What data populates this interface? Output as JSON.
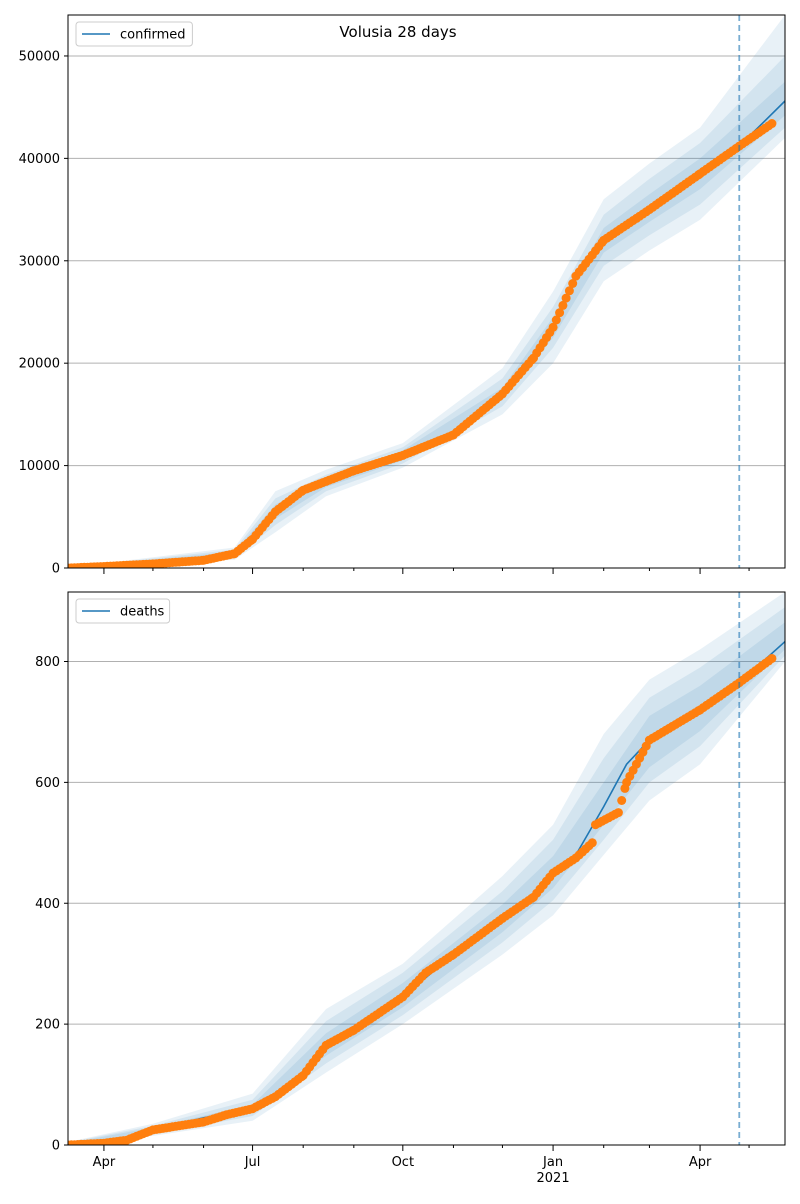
{
  "figure_title": "Volusia 28 days",
  "colors": {
    "model": "#1f77b4",
    "observed": "#ff7f0e",
    "band": "#1f77b4",
    "grid": "#b0b0b0",
    "cutoff": "#1f77b4"
  },
  "x_ticks": [
    {
      "date": "2020-04-01",
      "label": "Apr",
      "sub": ""
    },
    {
      "date": "2020-07-01",
      "label": "Jul",
      "sub": ""
    },
    {
      "date": "2020-10-01",
      "label": "Oct",
      "sub": ""
    },
    {
      "date": "2021-01-01",
      "label": "Jan",
      "sub": "2021"
    },
    {
      "date": "2021-04-01",
      "label": "Apr",
      "sub": ""
    }
  ],
  "chart_data": [
    {
      "type": "line",
      "title": "Volusia 28 days",
      "legend": [
        "confirmed"
      ],
      "legend_position": "upper-left",
      "grid": "horizontal",
      "xlim": [
        "2020-03-10",
        "2021-05-23"
      ],
      "ylim": [
        0,
        54000
      ],
      "yticks": [
        0,
        10000,
        20000,
        30000,
        40000,
        50000
      ],
      "ytick_labels": [
        "0",
        "10000",
        "20000",
        "30000",
        "40000",
        "50000"
      ],
      "forecast_start": "2021-04-25",
      "model_line": {
        "name": "confirmed",
        "points": [
          [
            "2020-03-10",
            0
          ],
          [
            "2020-04-01",
            150
          ],
          [
            "2020-05-01",
            400
          ],
          [
            "2020-06-01",
            750
          ],
          [
            "2020-06-20",
            1400
          ],
          [
            "2020-07-01",
            2800
          ],
          [
            "2020-07-15",
            5500
          ],
          [
            "2020-08-01",
            7600
          ],
          [
            "2020-09-01",
            9500
          ],
          [
            "2020-10-01",
            11000
          ],
          [
            "2020-11-01",
            13000
          ],
          [
            "2020-12-01",
            17000
          ],
          [
            "2020-12-20",
            20500
          ],
          [
            "2021-01-01",
            23500
          ],
          [
            "2021-01-15",
            28500
          ],
          [
            "2021-02-01",
            32000
          ],
          [
            "2021-03-01",
            35000
          ],
          [
            "2021-04-01",
            38500
          ],
          [
            "2021-04-25",
            41200
          ],
          [
            "2021-05-23",
            45600
          ]
        ]
      },
      "bands": [
        {
          "level": "outer",
          "lower": [
            [
              "2020-03-10",
              0
            ],
            [
              "2020-06-20",
              800
            ],
            [
              "2020-07-15",
              3500
            ],
            [
              "2020-08-15",
              7000
            ],
            [
              "2020-10-01",
              9800
            ],
            [
              "2020-12-01",
              15000
            ],
            [
              "2021-01-01",
              20000
            ],
            [
              "2021-02-01",
              28000
            ],
            [
              "2021-03-01",
              31000
            ],
            [
              "2021-04-01",
              34000
            ],
            [
              "2021-05-23",
              42000
            ]
          ],
          "upper": [
            [
              "2020-03-10",
              50
            ],
            [
              "2020-06-20",
              2000
            ],
            [
              "2020-07-15",
              7500
            ],
            [
              "2020-08-15",
              9600
            ],
            [
              "2020-10-01",
              12200
            ],
            [
              "2020-12-01",
              19500
            ],
            [
              "2021-01-01",
              27000
            ],
            [
              "2021-02-01",
              36000
            ],
            [
              "2021-03-01",
              39500
            ],
            [
              "2021-04-01",
              43000
            ],
            [
              "2021-05-23",
              54000
            ]
          ]
        },
        {
          "level": "middle",
          "lower": [
            [
              "2020-03-10",
              0
            ],
            [
              "2020-06-20",
              1000
            ],
            [
              "2020-07-15",
              4200
            ],
            [
              "2020-08-15",
              7500
            ],
            [
              "2020-10-01",
              10200
            ],
            [
              "2020-12-01",
              15800
            ],
            [
              "2021-01-01",
              21500
            ],
            [
              "2021-02-01",
              29500
            ],
            [
              "2021-03-01",
              32500
            ],
            [
              "2021-04-01",
              35500
            ],
            [
              "2021-05-23",
              43000
            ]
          ],
          "upper": [
            [
              "2020-03-10",
              30
            ],
            [
              "2020-06-20",
              1800
            ],
            [
              "2020-07-15",
              6800
            ],
            [
              "2020-08-15",
              9100
            ],
            [
              "2020-10-01",
              11800
            ],
            [
              "2020-12-01",
              18500
            ],
            [
              "2021-01-01",
              25500
            ],
            [
              "2021-02-01",
              34500
            ],
            [
              "2021-03-01",
              38000
            ],
            [
              "2021-04-01",
              41500
            ],
            [
              "2021-05-23",
              50000
            ]
          ]
        },
        {
          "level": "inner",
          "lower": [
            [
              "2020-03-10",
              0
            ],
            [
              "2020-06-20",
              1200
            ],
            [
              "2020-07-15",
              4800
            ],
            [
              "2020-08-15",
              7900
            ],
            [
              "2020-10-01",
              10500
            ],
            [
              "2020-12-01",
              16400
            ],
            [
              "2021-01-01",
              22500
            ],
            [
              "2021-02-01",
              30800
            ],
            [
              "2021-03-01",
              33800
            ],
            [
              "2021-04-01",
              37000
            ],
            [
              "2021-05-23",
              44200
            ]
          ],
          "upper": [
            [
              "2020-03-10",
              20
            ],
            [
              "2020-06-20",
              1600
            ],
            [
              "2020-07-15",
              6200
            ],
            [
              "2020-08-15",
              8700
            ],
            [
              "2020-10-01",
              11500
            ],
            [
              "2020-12-01",
              17600
            ],
            [
              "2021-01-01",
              24500
            ],
            [
              "2021-02-01",
              33200
            ],
            [
              "2021-03-01",
              36500
            ],
            [
              "2021-04-01",
              40000
            ],
            [
              "2021-05-23",
              47500
            ]
          ]
        }
      ],
      "observed": {
        "points": [
          [
            "2020-03-10",
            0
          ],
          [
            "2020-04-01",
            150
          ],
          [
            "2020-05-01",
            400
          ],
          [
            "2020-06-01",
            750
          ],
          [
            "2020-06-20",
            1400
          ],
          [
            "2020-07-01",
            2800
          ],
          [
            "2020-07-15",
            5500
          ],
          [
            "2020-08-01",
            7600
          ],
          [
            "2020-09-01",
            9500
          ],
          [
            "2020-10-01",
            11000
          ],
          [
            "2020-11-01",
            13000
          ],
          [
            "2020-12-01",
            17000
          ],
          [
            "2020-12-20",
            20500
          ],
          [
            "2021-01-01",
            23500
          ],
          [
            "2021-01-15",
            28500
          ],
          [
            "2021-02-01",
            32000
          ],
          [
            "2021-03-01",
            35000
          ],
          [
            "2021-04-01",
            38500
          ],
          [
            "2021-04-25",
            41200
          ],
          [
            "2021-05-15",
            43400
          ]
        ]
      }
    },
    {
      "type": "line",
      "title": "",
      "legend": [
        "deaths"
      ],
      "legend_position": "upper-left",
      "grid": "horizontal",
      "xlim": [
        "2020-03-10",
        "2021-05-23"
      ],
      "ylim": [
        0,
        915
      ],
      "yticks": [
        0,
        200,
        400,
        600,
        800
      ],
      "ytick_labels": [
        "0",
        "200",
        "400",
        "600",
        "800"
      ],
      "forecast_start": "2021-04-25",
      "model_line": {
        "name": "deaths",
        "points": [
          [
            "2020-03-10",
            0
          ],
          [
            "2020-04-01",
            2
          ],
          [
            "2020-05-01",
            25
          ],
          [
            "2020-06-01",
            45
          ],
          [
            "2020-07-01",
            60
          ],
          [
            "2020-07-15",
            80
          ],
          [
            "2020-08-01",
            115
          ],
          [
            "2020-08-15",
            165
          ],
          [
            "2020-09-01",
            190
          ],
          [
            "2020-10-01",
            245
          ],
          [
            "2020-11-01",
            315
          ],
          [
            "2020-12-01",
            375
          ],
          [
            "2020-12-20",
            410
          ],
          [
            "2021-01-01",
            450
          ],
          [
            "2021-01-15",
            480
          ],
          [
            "2021-02-01",
            560
          ],
          [
            "2021-02-15",
            630
          ],
          [
            "2021-03-01",
            670
          ],
          [
            "2021-04-01",
            720
          ],
          [
            "2021-04-25",
            765
          ],
          [
            "2021-05-23",
            833
          ]
        ]
      },
      "bands": [
        {
          "level": "outer",
          "lower": [
            [
              "2020-03-10",
              0
            ],
            [
              "2020-05-01",
              15
            ],
            [
              "2020-07-01",
              40
            ],
            [
              "2020-08-15",
              120
            ],
            [
              "2020-10-01",
              200
            ],
            [
              "2020-12-01",
              315
            ],
            [
              "2021-01-01",
              380
            ],
            [
              "2021-02-01",
              480
            ],
            [
              "2021-03-01",
              570
            ],
            [
              "2021-04-01",
              630
            ],
            [
              "2021-05-23",
              800
            ]
          ],
          "upper": [
            [
              "2020-03-10",
              5
            ],
            [
              "2020-05-01",
              35
            ],
            [
              "2020-07-01",
              85
            ],
            [
              "2020-08-15",
              225
            ],
            [
              "2020-10-01",
              300
            ],
            [
              "2020-12-01",
              445
            ],
            [
              "2021-01-01",
              530
            ],
            [
              "2021-02-01",
              680
            ],
            [
              "2021-03-01",
              770
            ],
            [
              "2021-04-01",
              820
            ],
            [
              "2021-05-23",
              915
            ]
          ]
        },
        {
          "level": "middle",
          "lower": [
            [
              "2020-03-10",
              0
            ],
            [
              "2020-05-01",
              18
            ],
            [
              "2020-07-01",
              48
            ],
            [
              "2020-08-15",
              135
            ],
            [
              "2020-10-01",
              215
            ],
            [
              "2020-12-01",
              335
            ],
            [
              "2021-01-01",
              405
            ],
            [
              "2021-02-01",
              505
            ],
            [
              "2021-03-01",
              600
            ],
            [
              "2021-04-01",
              660
            ],
            [
              "2021-05-23",
              810
            ]
          ],
          "upper": [
            [
              "2020-03-10",
              4
            ],
            [
              "2020-05-01",
              32
            ],
            [
              "2020-07-01",
              75
            ],
            [
              "2020-08-15",
              205
            ],
            [
              "2020-10-01",
              285
            ],
            [
              "2020-12-01",
              420
            ],
            [
              "2021-01-01",
              505
            ],
            [
              "2021-02-01",
              640
            ],
            [
              "2021-03-01",
              740
            ],
            [
              "2021-04-01",
              790
            ],
            [
              "2021-05-23",
              890
            ]
          ]
        },
        {
          "level": "inner",
          "lower": [
            [
              "2020-03-10",
              0
            ],
            [
              "2020-05-01",
              21
            ],
            [
              "2020-07-01",
              54
            ],
            [
              "2020-08-15",
              148
            ],
            [
              "2020-10-01",
              228
            ],
            [
              "2020-12-01",
              352
            ],
            [
              "2021-01-01",
              425
            ],
            [
              "2021-02-01",
              530
            ],
            [
              "2021-03-01",
              625
            ],
            [
              "2021-04-01",
              685
            ],
            [
              "2021-05-23",
              820
            ]
          ],
          "upper": [
            [
              "2020-03-10",
              3
            ],
            [
              "2020-05-01",
              29
            ],
            [
              "2020-07-01",
              67
            ],
            [
              "2020-08-15",
              185
            ],
            [
              "2020-10-01",
              268
            ],
            [
              "2020-12-01",
              398
            ],
            [
              "2021-01-01",
              478
            ],
            [
              "2021-02-01",
              600
            ],
            [
              "2021-03-01",
              710
            ],
            [
              "2021-04-01",
              760
            ],
            [
              "2021-05-23",
              865
            ]
          ]
        }
      ],
      "observed": {
        "points": [
          [
            "2020-03-10",
            0
          ],
          [
            "2020-04-01",
            3
          ],
          [
            "2020-04-15",
            8
          ],
          [
            "2020-05-01",
            25
          ],
          [
            "2020-06-01",
            38
          ],
          [
            "2020-06-15",
            50
          ],
          [
            "2020-07-01",
            60
          ],
          [
            "2020-07-15",
            80
          ],
          [
            "2020-08-01",
            115
          ],
          [
            "2020-08-15",
            165
          ],
          [
            "2020-09-01",
            190
          ],
          [
            "2020-10-01",
            245
          ],
          [
            "2020-10-15",
            285
          ],
          [
            "2020-11-01",
            315
          ],
          [
            "2020-12-01",
            375
          ],
          [
            "2020-12-20",
            410
          ],
          [
            "2021-01-01",
            450
          ],
          [
            "2021-01-15",
            475
          ],
          [
            "2021-01-25",
            500
          ],
          [
            "2021-01-27",
            530
          ],
          [
            "2021-02-10",
            550
          ],
          [
            "2021-02-15",
            600
          ],
          [
            "2021-03-01",
            670
          ],
          [
            "2021-04-01",
            720
          ],
          [
            "2021-04-25",
            765
          ],
          [
            "2021-05-15",
            805
          ]
        ]
      }
    }
  ]
}
